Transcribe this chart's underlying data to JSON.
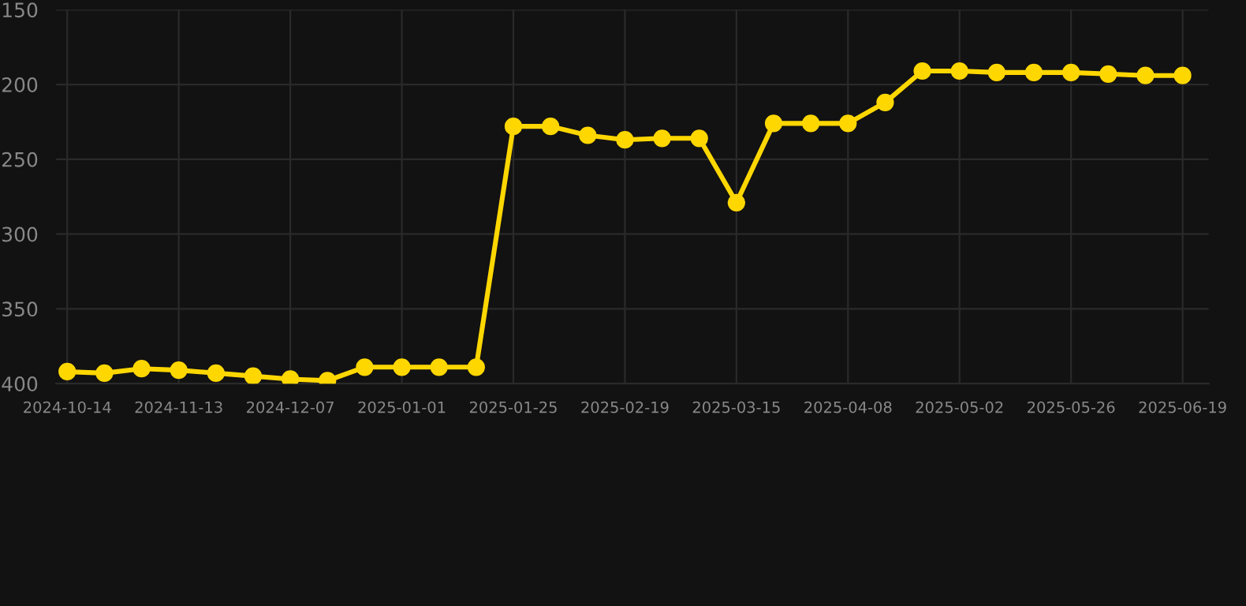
{
  "chart_data": {
    "type": "line",
    "categories": [
      "2024-10-14",
      null,
      null,
      "2024-11-13",
      null,
      null,
      "2024-12-07",
      null,
      null,
      "2025-01-01",
      null,
      null,
      "2025-01-25",
      null,
      null,
      "2025-02-19",
      null,
      null,
      "2025-03-15",
      null,
      null,
      "2025-04-08",
      null,
      null,
      "2025-05-02",
      null,
      null,
      "2025-05-26",
      null,
      null,
      "2025-06-19"
    ],
    "series": [
      {
        "color": "#ffd700",
        "values": [
          392,
          393,
          390,
          391,
          393,
          395,
          397,
          398,
          389,
          389,
          389,
          389,
          228,
          228,
          234,
          237,
          236,
          236,
          279,
          226,
          226,
          226,
          212,
          191,
          191,
          192,
          192,
          192,
          193,
          194,
          194
        ]
      }
    ],
    "ylim": [
      400,
      150
    ],
    "yticks": [
      150,
      200,
      250,
      300,
      350,
      400
    ],
    "grid": true,
    "marker": "circle",
    "line_style": "solid"
  }
}
